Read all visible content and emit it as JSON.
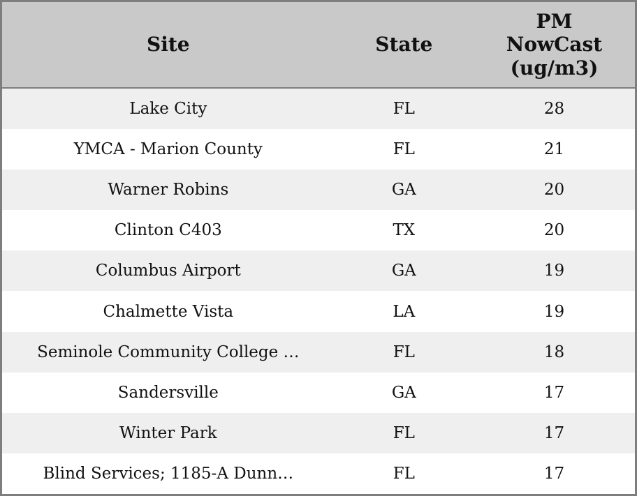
{
  "chart_data": {
    "type": "table",
    "title": "",
    "columns": [
      "Site",
      "State",
      "PM\nNowCast\n(ug/m3)"
    ],
    "rows": [
      [
        "Lake City",
        "FL",
        28
      ],
      [
        "YMCA - Marion County",
        "FL",
        21
      ],
      [
        "Warner Robins",
        "GA",
        20
      ],
      [
        "Clinton C403",
        "TX",
        20
      ],
      [
        "Columbus Airport",
        "GA",
        19
      ],
      [
        "Chalmette Vista",
        "LA",
        19
      ],
      [
        "Seminole Community College …",
        "FL",
        18
      ],
      [
        "Sandersville",
        "GA",
        17
      ],
      [
        "Winter Park",
        "FL",
        17
      ],
      [
        "Blind Services; 1185-A Dunn…",
        "FL",
        17
      ]
    ],
    "layout": {
      "header_bg": "#c9c9c9",
      "row_alt_bg": "#efefef",
      "row_bg": "#ffffff",
      "border_color": "#7e7e7e",
      "text_color": "#111111",
      "zebra_striping": true
    }
  }
}
